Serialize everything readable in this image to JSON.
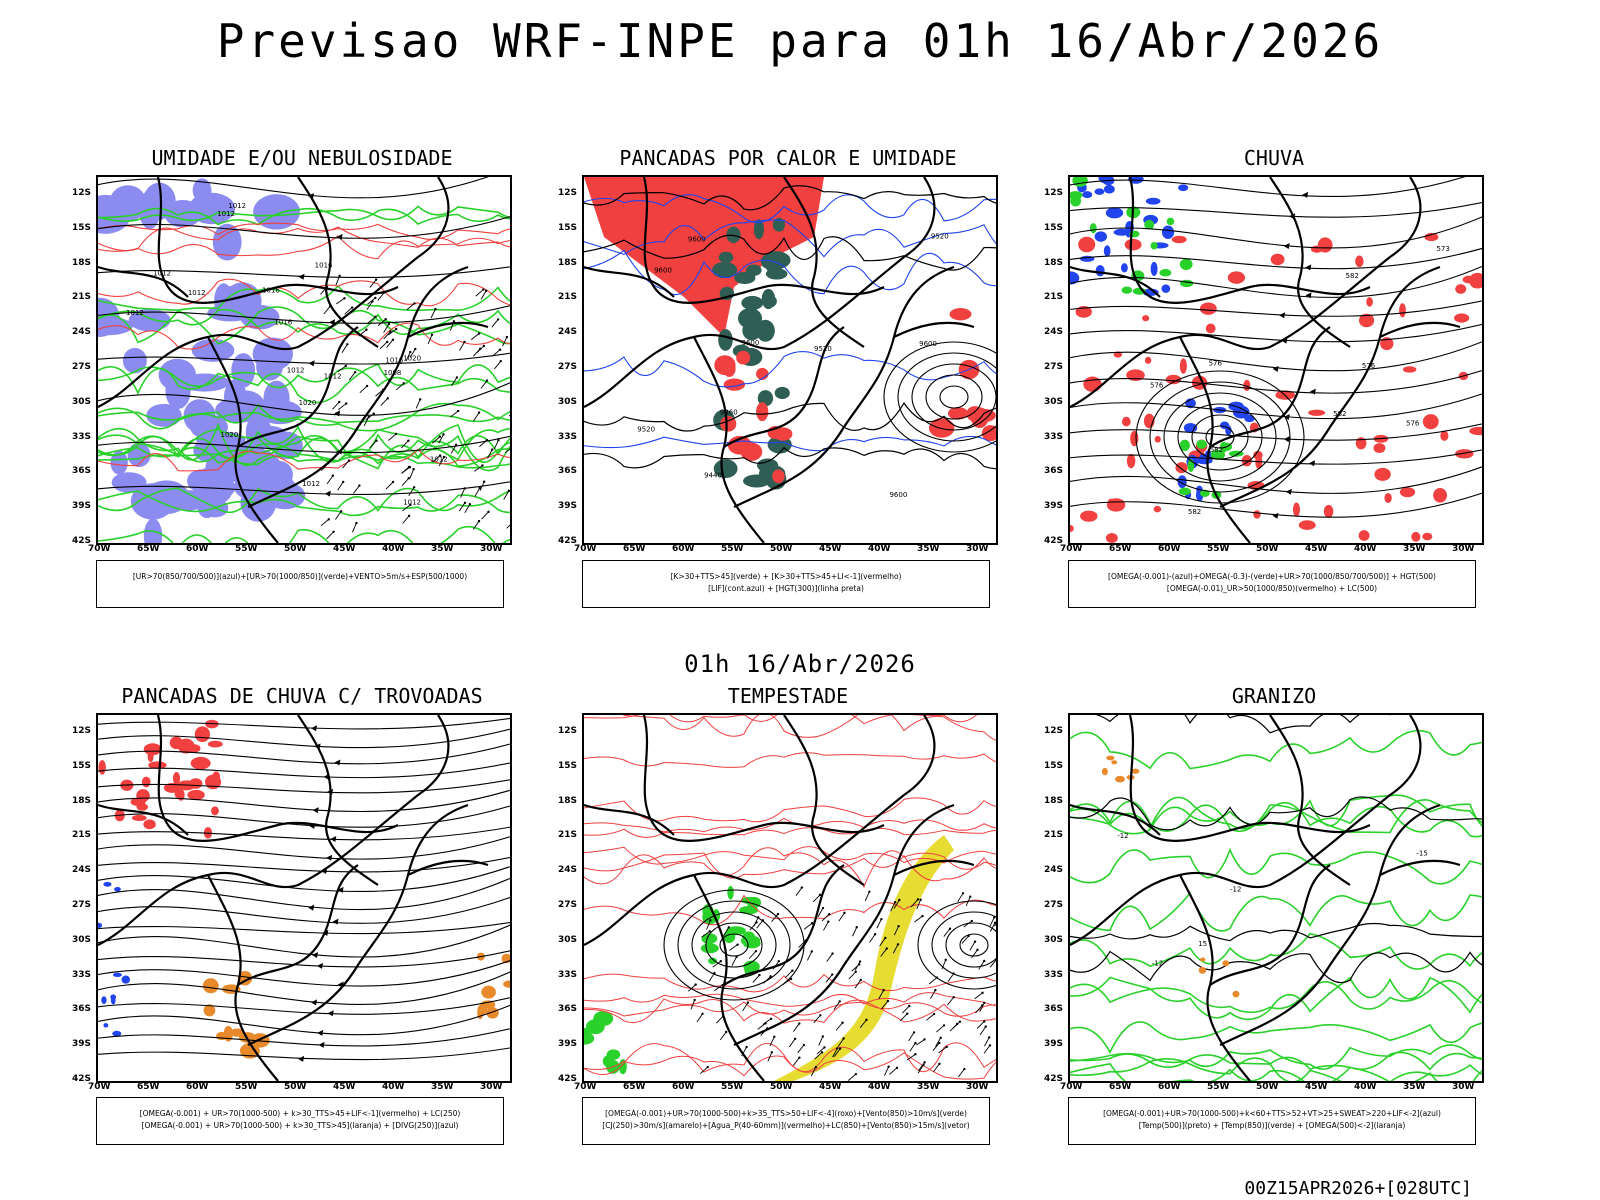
{
  "header": {
    "title": "Previsao WRF-INPE  para 01h 16/Abr/2026",
    "mid_label": "01h 16/Abr/2026",
    "stamp": "00Z15APR2026+[028UTC]"
  },
  "axes": {
    "lat_labels": [
      "12S",
      "15S",
      "18S",
      "21S",
      "24S",
      "27S",
      "30S",
      "33S",
      "36S",
      "39S",
      "42S"
    ],
    "lon_labels": [
      "70W",
      "65W",
      "60W",
      "55W",
      "50W",
      "45W",
      "40W",
      "35W",
      "30W"
    ]
  },
  "panels": [
    {
      "title": "UMIDADE E/OU NEBULOSIDADE",
      "legend": [
        "[UR>70(850/700/500)](azul)+[UR>70(1000/850)](verde)+VENTO>5m/s+ESP(500/1000)"
      ],
      "contour_labels": [
        "1012",
        "1012",
        "1016",
        "1012",
        "1020",
        "1016",
        "1012",
        "1012",
        "1012",
        "1008",
        "1012",
        "1016",
        "1012",
        "1020",
        "1020",
        "1012",
        "1016",
        "1012"
      ]
    },
    {
      "title": "PANCADAS POR CALOR E UMIDADE",
      "legend": [
        "[K>30+TTS>45](verde) + [K>30+TTS>45+LI<-1](vermelho)",
        "[LIF](cont.azul) + [HGT(300)](linha preta)"
      ],
      "contour_labels": [
        "9600",
        "9600",
        "9600",
        "9600",
        "9520",
        "9600",
        "9520",
        "9440",
        "9360",
        "9520"
      ]
    },
    {
      "title": "CHUVA",
      "legend": [
        "[OMEGA(-0.001)-(azul)+OMEGA(-0.3)-(verde)+UR>70(1000/850/700/500)] + HGT(500)",
        "[OMEGA(-0.01)_UR>50(1000/850)(vermelho) + LC(500)"
      ],
      "contour_labels": [
        "582",
        "582",
        "576",
        "582",
        "576",
        "582",
        "576",
        "573",
        "576"
      ]
    },
    {
      "title": "PANCADAS DE CHUVA C/ TROVOADAS",
      "legend": [
        "[OMEGA(-0.001) + UR>70(1000-500) + k>30_TTS>45+LIF<-1](vermelho) + LC(250)",
        "[OMEGA(-0.001) + UR>70(1000-500) + k>30_TTS>45](laranja) + [DIVG(250)](azul)"
      ],
      "contour_labels": []
    },
    {
      "title": "TEMPESTADE",
      "legend": [
        "[OMEGA(-0.001)+UR>70(1000-500)+k>35_TTS>50+LIF<-4](roxo)+[Vento(850)>10m/s](verde)",
        "[CJ(250)>30m/s](amarelo)+[Agua_P(40-60mm)](vermelho)+LC(850)+[Vento(850)>15m/s](vetor)"
      ],
      "contour_labels": []
    },
    {
      "title": "GRANIZO",
      "legend": [
        "[OMEGA(-0.001)+UR>70(1000-500)+k<60+TTS>52+VT>25+SWEAT>220+LIF<-2](azul)",
        "[Temp(500)](preto) + [Temp(850)](verde) + [OMEGA(500)<-2](laranja)"
      ],
      "contour_labels": [
        "-12",
        "-12",
        "-12",
        "-15",
        "15"
      ]
    }
  ],
  "colors": {
    "blue_shade": "#8c8cf0",
    "green": "#2ad12a",
    "red": "#f04040",
    "dark_green": "#2f5e55",
    "yellow": "#e6dc32",
    "orange": "#e88a2c",
    "blue": "#2244ee"
  }
}
